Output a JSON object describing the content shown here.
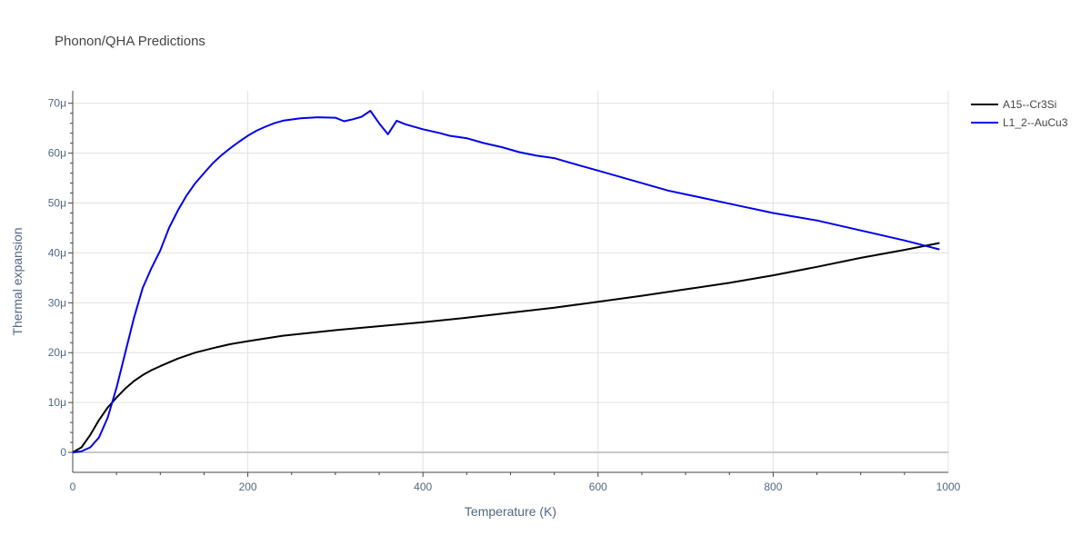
{
  "chart_data": {
    "type": "line",
    "title": "Phonon/QHA Predictions",
    "xlabel": "Temperature (K)",
    "ylabel": "Thermal expansion",
    "xlim": [
      0,
      1000
    ],
    "ylim": [
      -4,
      72.5
    ],
    "x_ticks": [
      0,
      200,
      400,
      600,
      800,
      1000
    ],
    "x_tick_labels": [
      "0",
      "200",
      "400",
      "600",
      "800",
      "1000"
    ],
    "y_ticks": [
      0,
      10,
      20,
      30,
      40,
      50,
      60,
      70
    ],
    "y_tick_labels": [
      "0",
      "10μ",
      "20μ",
      "30μ",
      "40μ",
      "50μ",
      "60μ",
      "70μ"
    ],
    "grid": true,
    "legend_position": "top-right",
    "series": [
      {
        "name": "A15--Cr3Si",
        "color": "#000000",
        "x": [
          0,
          10,
          20,
          30,
          40,
          50,
          60,
          70,
          80,
          90,
          100,
          120,
          140,
          160,
          180,
          200,
          240,
          300,
          350,
          400,
          450,
          500,
          550,
          600,
          650,
          700,
          750,
          800,
          850,
          900,
          950,
          990
        ],
        "y": [
          0,
          1,
          3.5,
          6.5,
          9,
          11,
          12.8,
          14.3,
          15.5,
          16.5,
          17.3,
          18.8,
          20,
          20.9,
          21.7,
          22.3,
          23.4,
          24.5,
          25.3,
          26.1,
          27,
          28,
          29,
          30.2,
          31.4,
          32.7,
          34,
          35.5,
          37.2,
          39,
          40.6,
          42
        ]
      },
      {
        "name": "L1_2--AuCu3",
        "color": "#0000ee",
        "x": [
          0,
          10,
          20,
          30,
          40,
          50,
          60,
          70,
          80,
          90,
          100,
          110,
          120,
          130,
          140,
          150,
          160,
          170,
          180,
          190,
          200,
          210,
          220,
          230,
          240,
          260,
          280,
          300,
          310,
          320,
          330,
          340,
          350,
          360,
          370,
          380,
          400,
          420,
          430,
          450,
          470,
          490,
          510,
          530,
          550,
          560,
          580,
          600,
          620,
          650,
          680,
          720,
          760,
          800,
          850,
          900,
          950,
          990
        ],
        "y": [
          0,
          0.2,
          1,
          3,
          7,
          13,
          20,
          27,
          33,
          37,
          40.5,
          45,
          48.5,
          51.5,
          54,
          56,
          58,
          59.6,
          61,
          62.3,
          63.5,
          64.5,
          65.3,
          66,
          66.5,
          67,
          67.2,
          67.1,
          66.4,
          66.8,
          67.3,
          68.5,
          66,
          63.8,
          66.5,
          65.8,
          64.8,
          64,
          63.5,
          63,
          62,
          61.2,
          60.2,
          59.5,
          59,
          58.5,
          57.5,
          56.5,
          55.5,
          54,
          52.5,
          51,
          49.5,
          48,
          46.5,
          44.5,
          42.5,
          40.7
        ]
      }
    ]
  }
}
